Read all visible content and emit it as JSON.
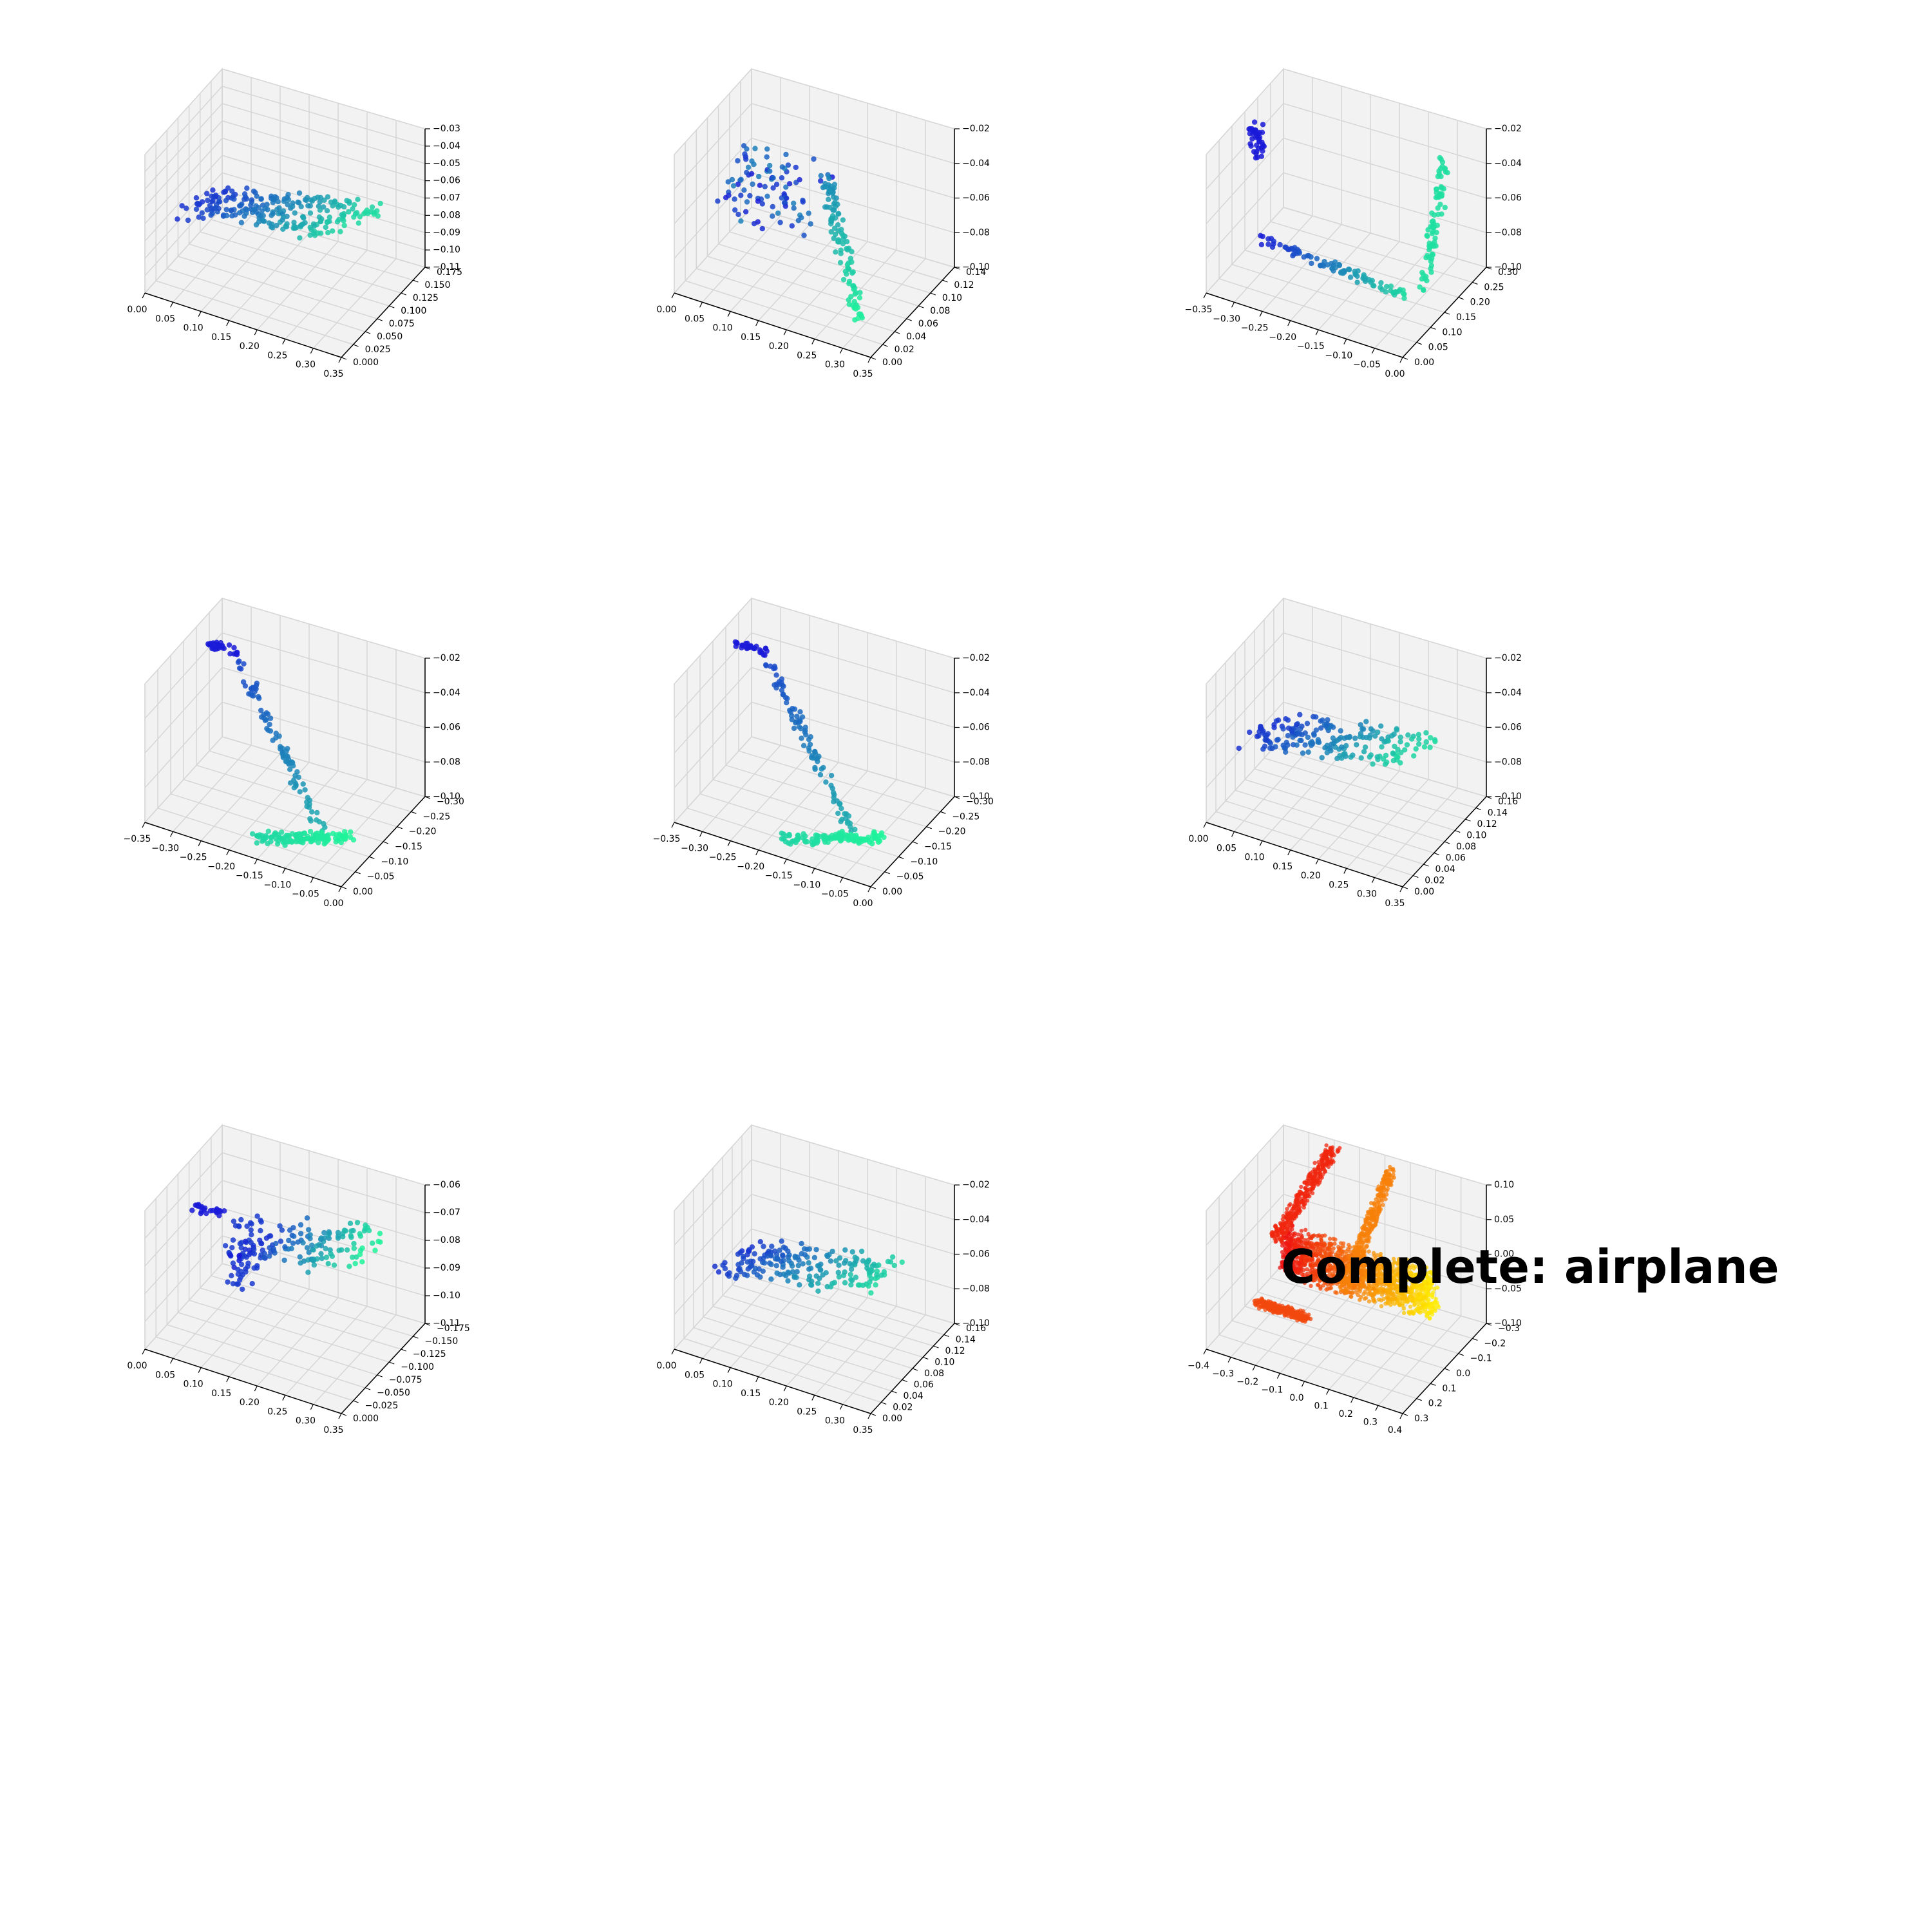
{
  "figure_title": "Complete: airplane",
  "colors": {
    "partial_start": "#1a1ad8",
    "partial_end": "#1ef59a",
    "complete_start": "#ee1111",
    "complete_end": "#ffee00",
    "pane_face": "#f2f2f2",
    "grid": "#d6d6d6"
  },
  "chart_data": [
    {
      "type": "scatter",
      "title": "",
      "x_ticks": [
        "0.00",
        "0.05",
        "0.10",
        "0.15",
        "0.20",
        "0.25",
        "0.30",
        "0.35"
      ],
      "y_ticks": [
        "0.000",
        "0.025",
        "0.050",
        "0.075",
        "0.100",
        "0.125",
        "0.150",
        "0.175"
      ],
      "z_ticks": [
        "−0.03",
        "−0.04",
        "−0.05",
        "−0.06",
        "−0.07",
        "−0.08",
        "−0.09",
        "−0.10",
        "−0.11"
      ],
      "xlim": [
        0.0,
        0.35
      ],
      "ylim": [
        0.0,
        0.175
      ],
      "zlim": [
        -0.11,
        -0.03
      ],
      "colormap": "winter (blue to green)",
      "shape": "grid"
    },
    {
      "type": "scatter",
      "title": "",
      "x_ticks": [
        "0.00",
        "0.05",
        "0.10",
        "0.15",
        "0.20",
        "0.25",
        "0.30",
        "0.35"
      ],
      "y_ticks": [
        "0.00",
        "0.02",
        "0.04",
        "0.06",
        "0.08",
        "0.10",
        "0.12",
        "0.14"
      ],
      "z_ticks": [
        "−0.02",
        "−0.04",
        "−0.06",
        "−0.08",
        "−0.10"
      ],
      "xlim": [
        0.0,
        0.35
      ],
      "ylim": [
        0.0,
        0.14
      ],
      "zlim": [
        -0.1,
        -0.02
      ],
      "colormap": "winter (blue to green)",
      "shape": "wing"
    },
    {
      "type": "scatter",
      "title": "",
      "x_ticks": [
        "−0.35",
        "−0.30",
        "−0.25",
        "−0.20",
        "−0.15",
        "−0.10",
        "−0.05",
        "0.00"
      ],
      "y_ticks": [
        "0.00",
        "0.05",
        "0.10",
        "0.15",
        "0.20",
        "0.25",
        "0.30"
      ],
      "z_ticks": [
        "−0.02",
        "−0.04",
        "−0.06",
        "−0.08",
        "−0.10"
      ],
      "xlim": [
        -0.35,
        0.0
      ],
      "ylim": [
        0.0,
        0.3
      ],
      "zlim": [
        -0.1,
        -0.02
      ],
      "colormap": "winter (blue to green)",
      "shape": "u"
    },
    {
      "type": "scatter",
      "title": "",
      "x_ticks": [
        "−0.35",
        "−0.30",
        "−0.25",
        "−0.20",
        "−0.15",
        "−0.10",
        "−0.05",
        "0.00"
      ],
      "y_ticks": [
        "0.00",
        "−0.05",
        "−0.10",
        "−0.15",
        "−0.20",
        "−0.25",
        "−0.30"
      ],
      "z_ticks": [
        "−0.02",
        "−0.04",
        "−0.06",
        "−0.08",
        "−0.10"
      ],
      "xlim": [
        -0.35,
        0.0
      ],
      "ylim": [
        -0.3,
        0.0
      ],
      "zlim": [
        -0.1,
        -0.02
      ],
      "colormap": "winter (blue to green)",
      "shape": "diag"
    },
    {
      "type": "scatter",
      "title": "",
      "x_ticks": [
        "−0.35",
        "−0.30",
        "−0.25",
        "−0.20",
        "−0.15",
        "−0.10",
        "−0.05",
        "0.00"
      ],
      "y_ticks": [
        "0.00",
        "−0.05",
        "−0.10",
        "−0.15",
        "−0.20",
        "−0.25",
        "−0.30"
      ],
      "z_ticks": [
        "−0.02",
        "−0.04",
        "−0.06",
        "−0.08",
        "−0.10"
      ],
      "xlim": [
        -0.35,
        0.0
      ],
      "ylim": [
        -0.3,
        0.0
      ],
      "zlim": [
        -0.1,
        -0.02
      ],
      "colormap": "winter (blue to green)",
      "shape": "diag2"
    },
    {
      "type": "scatter",
      "title": "",
      "x_ticks": [
        "0.00",
        "0.05",
        "0.10",
        "0.15",
        "0.20",
        "0.25",
        "0.30",
        "0.35"
      ],
      "y_ticks": [
        "0.00",
        "0.02",
        "0.04",
        "0.06",
        "0.08",
        "0.10",
        "0.12",
        "0.14",
        "0.16"
      ],
      "z_ticks": [
        "−0.02",
        "−0.04",
        "−0.06",
        "−0.08",
        "−0.10"
      ],
      "xlim": [
        0.0,
        0.35
      ],
      "ylim": [
        0.0,
        0.16
      ],
      "zlim": [
        -0.1,
        -0.02
      ],
      "colormap": "winter (blue to green)",
      "shape": "grid2"
    },
    {
      "type": "scatter",
      "title": "",
      "x_ticks": [
        "0.00",
        "0.05",
        "0.10",
        "0.15",
        "0.20",
        "0.25",
        "0.30",
        "0.35"
      ],
      "y_ticks": [
        "0.000",
        "−0.025",
        "−0.050",
        "−0.075",
        "−0.100",
        "−0.125",
        "−0.150",
        "−0.175"
      ],
      "z_ticks": [
        "−0.06",
        "−0.07",
        "−0.08",
        "−0.09",
        "−0.10",
        "−0.11"
      ],
      "xlim": [
        0.0,
        0.35
      ],
      "ylim": [
        -0.175,
        0.0
      ],
      "zlim": [
        -0.11,
        -0.06
      ],
      "colormap": "winter (blue to green)",
      "shape": "tail"
    },
    {
      "type": "scatter",
      "title": "",
      "x_ticks": [
        "0.00",
        "0.05",
        "0.10",
        "0.15",
        "0.20",
        "0.25",
        "0.30",
        "0.35"
      ],
      "y_ticks": [
        "0.00",
        "0.02",
        "0.04",
        "0.06",
        "0.08",
        "0.10",
        "0.12",
        "0.14",
        "0.16"
      ],
      "z_ticks": [
        "−0.02",
        "−0.04",
        "−0.06",
        "−0.08",
        "−0.10"
      ],
      "xlim": [
        0.0,
        0.35
      ],
      "ylim": [
        0.0,
        0.16
      ],
      "zlim": [
        -0.1,
        -0.02
      ],
      "colormap": "winter (blue to green)",
      "shape": "grid3"
    },
    {
      "type": "scatter",
      "title": "Complete: airplane",
      "x_ticks": [
        "−0.4",
        "−0.3",
        "−0.2",
        "−0.1",
        "0.0",
        "0.1",
        "0.2",
        "0.3",
        "0.4"
      ],
      "y_ticks": [
        "0.3",
        "0.2",
        "0.1",
        "0.0",
        "−0.1",
        "−0.2",
        "−0.3"
      ],
      "z_ticks": [
        "0.10",
        "0.05",
        "0.00",
        "−0.05",
        "−0.10"
      ],
      "xlim": [
        -0.4,
        0.4
      ],
      "ylim": [
        -0.3,
        0.3
      ],
      "zlim": [
        -0.1,
        0.1
      ],
      "colormap": "autumn (red to yellow)",
      "shape": "airplane"
    }
  ]
}
